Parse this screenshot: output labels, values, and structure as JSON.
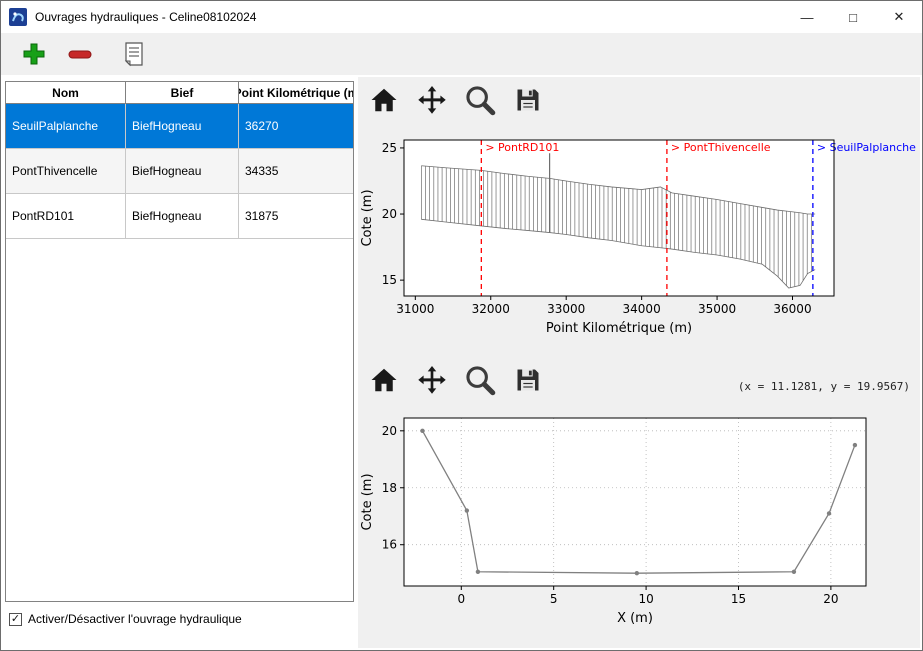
{
  "window": {
    "title": "Ouvrages hydrauliques - Celine08102024",
    "controls": {
      "minimize": "—",
      "maximize": "□",
      "close": "✕"
    }
  },
  "toolbar": {
    "add_icon": "plus",
    "remove_icon": "minus",
    "notes_icon": "document-lines"
  },
  "table": {
    "columns": [
      "Nom",
      "Bief",
      "Point Kilométrique (m"
    ],
    "rows": [
      [
        "SeuilPalplanche",
        "BiefHogneau",
        "36270"
      ],
      [
        "PontThivencelle",
        "BiefHogneau",
        "34335"
      ],
      [
        "PontRD101",
        "BiefHogneau",
        "31875"
      ]
    ],
    "selected_index": 0,
    "selection_color": "#0078d7"
  },
  "checkbox": {
    "label": "Activer/Désactiver l'ouvrage hydraulique",
    "checked": true,
    "glyph": "✓"
  },
  "readout": "(x = 11.1281,  y = 19.9567)",
  "chart_data": [
    {
      "type": "line",
      "title": "",
      "xlabel": "Point Kilométrique (m)",
      "ylabel": "Cote (m)",
      "xlim": [
        30850,
        36550
      ],
      "ylim": [
        13.8,
        25.6
      ],
      "xticks": [
        31000,
        32000,
        33000,
        34000,
        35000,
        36000
      ],
      "yticks": [
        15,
        20,
        25
      ],
      "grid": false,
      "hatch_step": 55,
      "profile_envelope": {
        "x": [
          31080,
          31400,
          31875,
          32200,
          32500,
          32780,
          33000,
          33300,
          33600,
          34000,
          34250,
          34400,
          34700,
          35000,
          35300,
          35600,
          35800,
          35950,
          36100,
          36200,
          36300
        ],
        "bottom": [
          19.6,
          19.4,
          19.1,
          18.9,
          18.75,
          18.6,
          18.45,
          18.2,
          18.0,
          17.6,
          17.45,
          17.35,
          17.1,
          16.9,
          16.6,
          16.2,
          15.3,
          14.4,
          14.6,
          15.5,
          15.8
        ],
        "top": [
          23.65,
          23.5,
          23.3,
          23.05,
          22.85,
          22.7,
          22.5,
          22.25,
          22.05,
          21.85,
          22.05,
          21.6,
          21.35,
          21.1,
          20.8,
          20.5,
          20.3,
          20.2,
          20.1,
          20.0,
          20.0
        ]
      },
      "spike": {
        "x": 32780,
        "top": 24.6
      },
      "markers": [
        {
          "x": 31875,
          "color": "#ff0000",
          "label": "> PontRD101"
        },
        {
          "x": 34335,
          "color": "#ff0000",
          "label": "> PontThivencelle"
        },
        {
          "x": 36270,
          "color": "#0000ff",
          "label": "> SeuilPalplanche"
        }
      ]
    },
    {
      "type": "line",
      "title": "",
      "xlabel": "X (m)",
      "ylabel": "Cote (m)",
      "xlim": [
        -3.1,
        21.9
      ],
      "ylim": [
        14.55,
        20.45
      ],
      "xticks": [
        0,
        5,
        10,
        15,
        20
      ],
      "yticks": [
        16,
        18,
        20
      ],
      "grid": true,
      "line_color": "#808080",
      "x": [
        -2.1,
        0.3,
        0.9,
        9.5,
        18.0,
        19.9,
        21.3
      ],
      "y": [
        20.0,
        17.2,
        15.05,
        15.0,
        15.05,
        17.1,
        19.5
      ]
    }
  ]
}
